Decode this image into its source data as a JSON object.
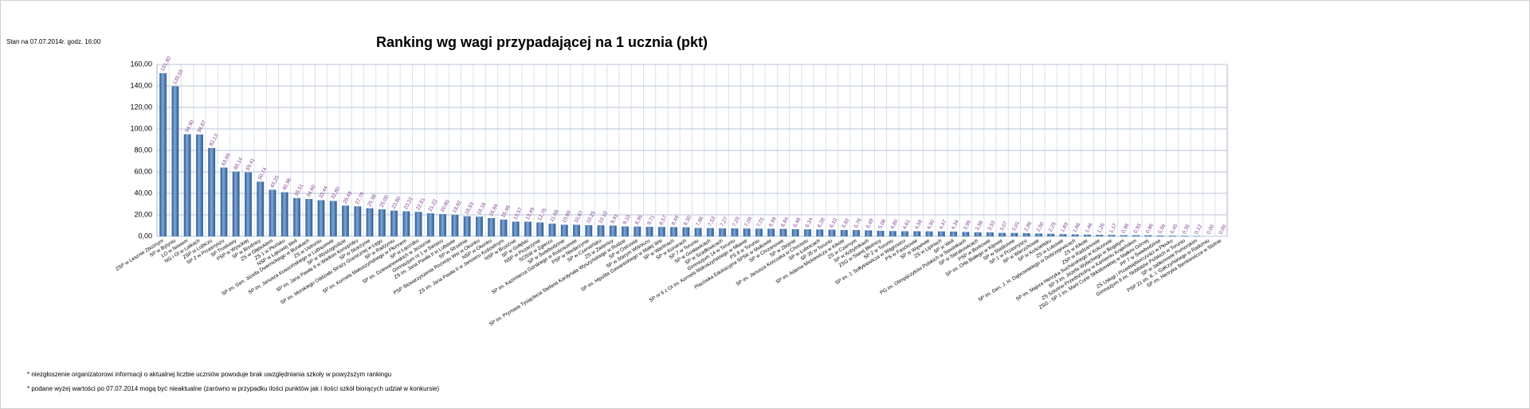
{
  "note": "Stan na 07.07.2014r.  godz. 16:00",
  "footnotes": [
    "* niezgłoszenie organizatorowi informacji o aktualnej liczbie uczniów powoduje brak uwzględniania szkoły w powyższym rankingu",
    "* podane wyżej wartości po 07.07.2014  mogą być nieaktualne (zarówno w przypadku ilości punktów jak i ilości szkół biorących udział w konkursie)"
  ],
  "chart_data": {
    "type": "bar",
    "title": "Ranking wg wagi przypadającej na 1 ucznia (pkt)",
    "color": "#4f81bd",
    "grid": true,
    "ylim": [
      0,
      160
    ],
    "yticks": [
      {
        "value": 0,
        "label": "0,00"
      },
      {
        "value": 20,
        "label": "20,00"
      },
      {
        "value": 40,
        "label": "40,00"
      },
      {
        "value": 60,
        "label": "60,00"
      },
      {
        "value": 80,
        "label": "80,00"
      },
      {
        "value": 100,
        "label": "100,00"
      },
      {
        "value": 120,
        "label": "120,00"
      },
      {
        "value": 140,
        "label": "140,00"
      },
      {
        "value": 160,
        "label": "160,00"
      }
    ],
    "categories": [
      "ZSP w Lesznie Zbożnym",
      "SP w Bytyniu",
      "LO w Nowem",
      "NG i OI w Latkach",
      "ZSP w Lubiczu",
      "SP 2 w Przasnyszu",
      "SP Truskawy",
      "PSP w Wysokiej",
      "SP w Brodnicy",
      "ZS w Głębokiem",
      "ZS 1 w Płońsku",
      "NSP w Łąkowej Woli",
      "SP im. Gen. Józefa Dwernickiego w Burakach",
      "ZS w Ustroniu",
      "SP im. Janusza Kusocińskiego w Lubiszewie",
      "SP w Wyszogrodzie",
      "SP im. Jana Pawła II w Wielkim Konopniku",
      "SP w Skarżynie",
      "SP im. Morskiego Oddziału Straży Granicznej w Łęgu",
      "SP w Radzyniu",
      "SP im. Kornela Makuszyńskiego w Płonnem",
      "SP w Łączniku",
      "SP im. Dziewanowskich w Jeziornie",
      "Gimnazjum nr 1 w Sierpcu",
      "ZS im. Jana Pawła II w Lubawie",
      "SP w Strzelnie",
      "PSP Stowarzyszenia Rozwoju Wsi w Okonku",
      "NSP w Okonku",
      "ZS im. Jana Pawła II w Janowcu Kościelnym",
      "NSP w Brzeźnie",
      "SP w Gołębiu",
      "NSP w Pozarzynie",
      "SOSW w Zgierzu",
      "SP w Świebodzinie",
      "SP im. Kazimierza Górskiego w Rościszewie",
      "PSP w Niedarzynie",
      "SP w Czerwińsku",
      "ZS w Zielenicy",
      "SP im. Prymasa Tysiąclecia Stefana Kardynała Wyszyńskiego w Rudzie",
      "SP w Ostrowie",
      "SP w Starym Wiśniczu",
      "SP im. Hipolita Gawareckiego w Małej Wsi",
      "SP w Warlinach",
      "SP w Konarach",
      "SP 7 w Toruniu",
      "SP w Gosławicach",
      "SP w Szadłowicach",
      "Gimnazjum 14 w Toruniu",
      "SP nr 6 z OI im. Kornela Makuszyńskiego w Mławie",
      "PS 8 w Toruniu",
      "Placówka Edukacyjna SPSK w Mołtowie",
      "SP w Chrzanowie",
      "SP w Zbójnie",
      "SP im. Janusza Korczaka w Chociwiu",
      "SP w Łubnicach",
      "SP 35 w Toruniu",
      "SP im. Adama Mickiewicza w Kikole",
      "ZS w Czarnym",
      "SP w Kobylnikach",
      "ZSG w Starej Błotnicy",
      "SP 2 w Toruniu",
      "SP im. J. Sołtykiewicza w Wągrowcu",
      "PS w Faszkowie",
      "SP w Wąsewie",
      "ZS w Lipinach",
      "SP w Woli",
      "PG im. Olimpijczyków Polskich w Stawiskach",
      "SP w Sierakowicach",
      "PSP w Borkowie",
      "SP im. Orła Białego w Kijewie",
      "SP w Staśkowie",
      "SP 1 w Przasnyszu",
      "SP w Wierzchowie",
      "SP w Kościelisku",
      "ZS w Łukowie",
      "SP im. Gen. J. H. Dąbrowskiego w Dobrzejewicach",
      "ZS w Kikole",
      "ZSP w Radzanowie",
      "SP im. Majora Henryka Sucharskiego w Kołczewie",
      "SP 3 im. Józefa Wybickiego w Bogatyni",
      "ZS Szkolno-Przedszkolny w Kamieniu Krajeńskim",
      "ZSG - SP 1 im. Marii Curie Skłodowskiej w Małkini Górnej",
      "PP 7 w Świebodzinie",
      "ZS Usługi i Przedsiębiorczości w Płocku",
      "Gimnazjum 9 im. Noblistów Polskich w Toruniu",
      "SP w Jabłonowie Pomorskim",
      "PSP 21 im. K. I. Gałczyńskiego w Radomiu",
      "SP im. Henryka Sienkiewicza w Stolnie"
    ],
    "values": [
      151.8,
      139.53,
      94.9,
      94.67,
      82.13,
      63.89,
      60.14,
      59.41,
      50.74,
      43.25,
      40.96,
      35.51,
      34.6,
      33.44,
      32.8,
      28.49,
      27.79,
      25.98,
      25.0,
      23.8,
      23.22,
      22.61,
      21.22,
      20.6,
      19.92,
      18.53,
      18.16,
      16.84,
      15.48,
      13.57,
      13.49,
      12.75,
      11.68,
      10.69,
      10.67,
      10.25,
      10.1,
      9.91,
      9.1,
      8.95,
      8.71,
      8.57,
      8.49,
      8.3,
      7.66,
      7.53,
      7.27,
      7.25,
      7.09,
      7.01,
      6.99,
      6.84,
      6.48,
      6.34,
      6.28,
      6.1,
      5.82,
      5.76,
      5.49,
      5.06,
      4.8,
      4.61,
      4.58,
      4.5,
      4.47,
      4.34,
      3.99,
      3.58,
      3.53,
      3.07,
      3.01,
      2.86,
      2.5,
      2.25,
      1.89,
      1.66,
      1.46,
      1.26,
      1.17,
      0.98,
      0.93,
      0.86,
      0.56,
      0.45,
      0.35,
      0.12,
      0.0,
      0.0
    ],
    "value_labels": [
      "151,80",
      "139,53",
      "94,90",
      "94,67",
      "82,13",
      "63,89",
      "60,14",
      "59,41",
      "50,74",
      "43,25",
      "40,96",
      "35,51",
      "34,60",
      "33,44",
      "32,80",
      "28,49",
      "27,79",
      "25,98",
      "25,00",
      "23,80",
      "23,22",
      "22,61",
      "21,22",
      "20,60",
      "19,92",
      "18,53",
      "18,16",
      "16,84",
      "15,48",
      "13,57",
      "13,49",
      "12,75",
      "11,68",
      "10,69",
      "10,67",
      "10,25",
      "10,10",
      "9,91",
      "9,10",
      "8,95",
      "8,71",
      "8,57",
      "8,49",
      "8,30",
      "7,66",
      "7,53",
      "7,27",
      "7,25",
      "7,09",
      "7,01",
      "6,99",
      "6,84",
      "6,48",
      "6,34",
      "6,28",
      "6,10",
      "5,82",
      "5,76",
      "5,49",
      "5,06",
      "4,80",
      "4,61",
      "4,58",
      "4,50",
      "4,47",
      "4,34",
      "3,99",
      "3,58",
      "3,53",
      "3,07",
      "3,01",
      "2,86",
      "2,50",
      "2,25",
      "1,89",
      "1,66",
      "1,46",
      "1,26",
      "1,17",
      "0,98",
      "0,93",
      "0,86",
      "0,56",
      "0,45",
      "0,35",
      "0,12",
      "0,00",
      "0,00"
    ]
  }
}
